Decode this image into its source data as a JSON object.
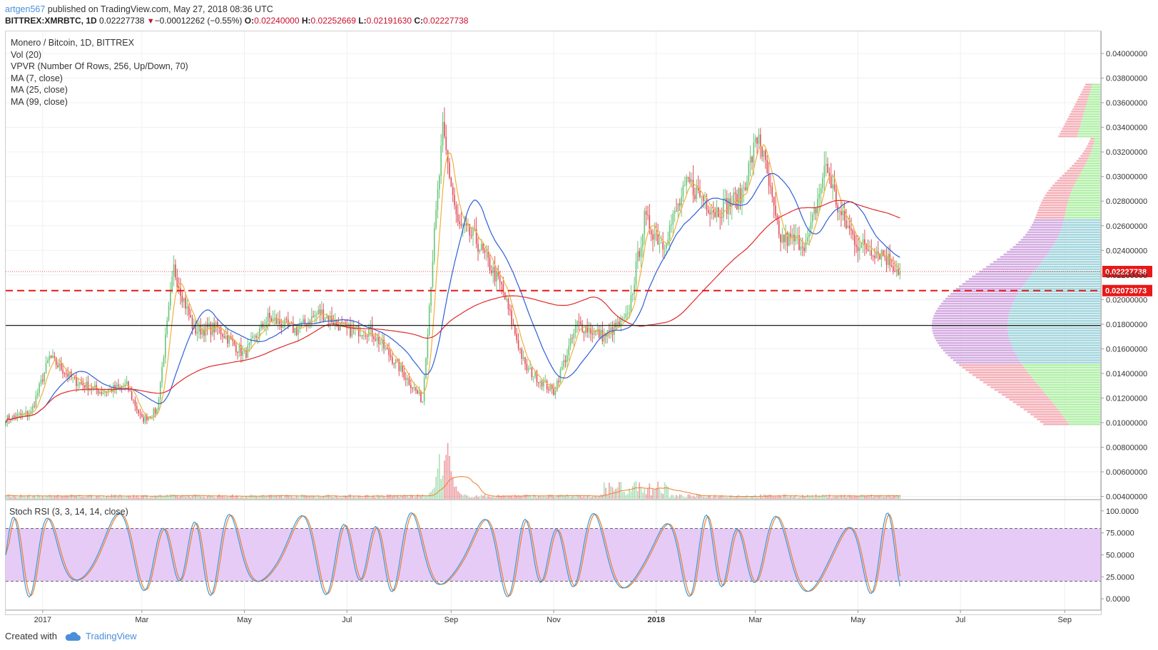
{
  "header": {
    "user": "artgen567",
    "published_text": "published on TradingView.com, May 27, 2018 08:36 UTC",
    "symbol": "BITTREX:XMRBTC, 1D",
    "last": "0.02227738",
    "change": "−0.00012262 (−0.55%)",
    "o_label": "O:",
    "o": "0.02240000",
    "h_label": "H:",
    "h": "0.02252669",
    "l_label": "L:",
    "l": "0.02191630",
    "c_label": "C:",
    "c": "0.02227738"
  },
  "legend": {
    "title": "Monero / Bitcoin, 1D, BITTREX",
    "vol": "Vol (20)",
    "vpvr": "VPVR (Number Of Rows, 256, Up/Down, 70)",
    "ma7": "MA (7, close)",
    "ma25": "MA (25, close)",
    "ma99": "MA (99, close)"
  },
  "stoch_label": "Stoch RSI (3, 3, 14, 14, close)",
  "footer": {
    "created_with": "Created with",
    "brand": "TradingView"
  },
  "colors": {
    "up": "#6bc77a",
    "down": "#e0505a",
    "ma7": "#f0b03c",
    "ma25": "#2e5fd8",
    "ma99": "#e02a2a",
    "vpvr_up": "#b2f0a8",
    "vpvr_down": "#f5b0b8",
    "va_up": "#a6d7de",
    "va_down": "#d5aee2",
    "stoch_k": "#3a9ad9",
    "stoch_d": "#ef7e2c",
    "stoch_band": "#e6cbf7",
    "tag_red": "#e81818"
  },
  "chart_data": [
    {
      "type": "candlestick",
      "title": "Monero / Bitcoin, 1D, BITTREX",
      "x_ticks": [
        "2017",
        "Mar",
        "May",
        "Jul",
        "Sep",
        "Nov",
        "2018",
        "Mar",
        "May",
        "Jul",
        "Sep"
      ],
      "y_ticks": [
        "0.04000000",
        "0.03800000",
        "0.03600000",
        "0.03400000",
        "0.03200000",
        "0.03000000",
        "0.02800000",
        "0.02600000",
        "0.02400000",
        "0.02200000",
        "0.02000000",
        "0.01800000",
        "0.01600000",
        "0.01400000",
        "0.01200000",
        "0.01000000",
        "0.00800000",
        "0.00600000",
        "0.00400000"
      ],
      "ylim": [
        0.0038,
        0.0418
      ],
      "last_price_label": "0.02227738",
      "marked_level_label": "0.02073073",
      "marked_level_value": 0.02073073,
      "horizontal_line_value": 0.0179,
      "close_series_approx": {
        "dates": [
          "2016-12-10",
          "2016-12-25",
          "2017-01-05",
          "2017-01-20",
          "2017-02-05",
          "2017-02-20",
          "2017-03-01",
          "2017-03-10",
          "2017-03-20",
          "2017-04-01",
          "2017-04-15",
          "2017-05-01",
          "2017-05-15",
          "2017-06-01",
          "2017-06-15",
          "2017-07-01",
          "2017-07-15",
          "2017-08-01",
          "2017-08-15",
          "2017-08-21",
          "2017-08-27",
          "2017-09-05",
          "2017-09-15",
          "2017-10-01",
          "2017-10-15",
          "2017-11-01",
          "2017-11-15",
          "2017-12-01",
          "2017-12-15",
          "2017-12-25",
          "2018-01-05",
          "2018-01-20",
          "2018-02-05",
          "2018-02-20",
          "2018-03-03",
          "2018-03-15",
          "2018-04-01",
          "2018-04-12",
          "2018-04-20",
          "2018-05-01",
          "2018-05-15",
          "2018-05-26"
        ],
        "close": [
          0.0103,
          0.0108,
          0.0153,
          0.0134,
          0.0125,
          0.013,
          0.0102,
          0.011,
          0.0225,
          0.0175,
          0.0177,
          0.0155,
          0.0185,
          0.0175,
          0.019,
          0.0175,
          0.0175,
          0.0145,
          0.0118,
          0.0235,
          0.0335,
          0.026,
          0.025,
          0.021,
          0.0145,
          0.0125,
          0.018,
          0.017,
          0.0185,
          0.0265,
          0.0245,
          0.0295,
          0.0272,
          0.0283,
          0.0335,
          0.025,
          0.0246,
          0.031,
          0.027,
          0.0245,
          0.0238,
          0.02227738
        ]
      }
    },
    {
      "type": "line",
      "title": "Stoch RSI (3, 3, 14, 14, close)",
      "y_ticks": [
        "100.0000",
        "75.0000",
        "50.0000",
        "25.0000",
        "0.0000"
      ],
      "ylim": [
        -12,
        112
      ],
      "band": [
        20,
        80
      ],
      "series": [
        {
          "name": "K"
        },
        {
          "name": "D"
        }
      ]
    }
  ]
}
